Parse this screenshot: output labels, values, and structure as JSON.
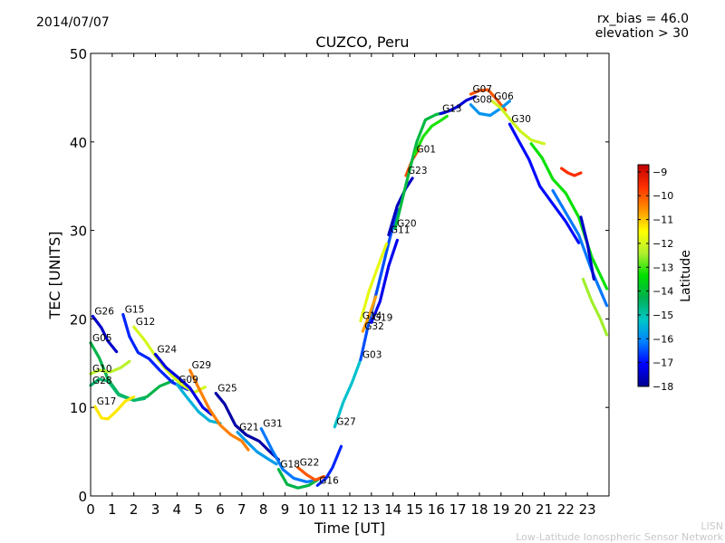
{
  "header": {
    "date": "2014/07/07",
    "title": "CUZCO, Peru",
    "note_line1": "rx_bias = 46.0",
    "note_line2": "elevation > 30"
  },
  "footer": {
    "credit_line1": "LISN",
    "credit_line2": "Low-Latitude Ionospheric Sensor Network"
  },
  "colors": {
    "scale": [
      "#00008f",
      "#0000ff",
      "#0080ff",
      "#00c8c8",
      "#00b050",
      "#00e000",
      "#b0f030",
      "#ffff00",
      "#ff9000",
      "#ff3000",
      "#c00000"
    ]
  },
  "chart_data": {
    "type": "line",
    "title": "CUZCO, Peru",
    "xlabel": "Time [UT]",
    "ylabel": "TEC [UNITS]",
    "xlim": [
      0,
      24
    ],
    "ylim": [
      0,
      50
    ],
    "xticks": [
      0,
      1,
      2,
      3,
      4,
      5,
      6,
      7,
      8,
      9,
      10,
      11,
      12,
      13,
      14,
      15,
      16,
      17,
      18,
      19,
      20,
      21,
      22,
      23
    ],
    "yticks": [
      0,
      10,
      20,
      30,
      40,
      50
    ],
    "grid": false,
    "colorbar": {
      "label": "Latitude",
      "range": [
        -18,
        -8.7
      ],
      "ticks": [
        -9,
        -10,
        -11,
        -12,
        -13,
        -14,
        -15,
        -16,
        -17,
        -18
      ]
    },
    "series": [
      {
        "name": "G26",
        "lat": -17.5,
        "x": [
          0.1,
          0.5,
          0.8,
          1.2
        ],
        "y": [
          20.3,
          19.0,
          17.5,
          16.3
        ]
      },
      {
        "name": "G05",
        "lat": -14.2,
        "x": [
          0.0,
          0.4,
          0.8,
          1.3,
          2.0,
          2.6,
          3.2,
          3.8
        ],
        "y": [
          17.3,
          15.6,
          13.2,
          11.5,
          10.8,
          11.2,
          12.4,
          13.0
        ]
      },
      {
        "name": "G10",
        "lat": -12.3,
        "x": [
          0.0,
          0.4,
          0.9,
          1.4,
          1.8
        ],
        "y": [
          13.8,
          14.2,
          14.0,
          14.5,
          15.2
        ]
      },
      {
        "name": "G28",
        "lat": -14.5,
        "x": [
          0.0,
          0.4,
          0.8,
          1.3,
          2.0,
          2.5
        ],
        "y": [
          12.5,
          13.2,
          13.0,
          11.4,
          10.8,
          11.0
        ]
      },
      {
        "name": "G17",
        "lat": -11.3,
        "x": [
          0.2,
          0.5,
          0.8,
          1.2,
          1.6,
          2.0
        ],
        "y": [
          10.1,
          8.8,
          8.7,
          9.6,
          10.7,
          11.2
        ]
      },
      {
        "name": "G15",
        "lat": -16.8,
        "x": [
          1.5,
          1.8,
          2.2,
          2.7,
          3.2,
          3.8,
          4.5
        ],
        "y": [
          20.5,
          18.0,
          16.2,
          15.5,
          14.2,
          12.8,
          12.0
        ]
      },
      {
        "name": "G12",
        "lat": -12.0,
        "x": [
          2.0,
          2.5,
          3.0,
          3.6,
          4.2,
          4.8,
          5.3
        ],
        "y": [
          19.1,
          17.6,
          15.8,
          14.0,
          12.6,
          11.7,
          12.3
        ]
      },
      {
        "name": "G24",
        "lat": -17.3,
        "x": [
          3.0,
          3.5,
          4.0,
          4.6,
          5.2,
          5.6
        ],
        "y": [
          16.0,
          14.5,
          13.5,
          12.2,
          10.0,
          9.2
        ]
      },
      {
        "name": "G09",
        "lat": -15.5,
        "x": [
          4.0,
          4.5,
          5.0,
          5.5,
          6.0
        ],
        "y": [
          12.6,
          11.0,
          9.5,
          8.5,
          8.2
        ]
      },
      {
        "name": "G29",
        "lat": -10.4,
        "x": [
          4.6,
          5.0,
          5.5,
          6.0,
          6.5,
          7.0,
          7.3
        ],
        "y": [
          14.2,
          12.2,
          9.8,
          8.0,
          6.9,
          6.2,
          5.2
        ]
      },
      {
        "name": "G25",
        "lat": -17.8,
        "x": [
          5.8,
          6.2,
          6.7,
          7.2,
          7.8,
          8.3,
          8.7
        ],
        "y": [
          11.6,
          10.4,
          8.0,
          6.9,
          6.2,
          5.0,
          4.1
        ]
      },
      {
        "name": "G21",
        "lat": -15.8,
        "x": [
          6.8,
          7.2,
          7.7,
          8.2,
          8.6
        ],
        "y": [
          7.2,
          6.2,
          5.0,
          4.2,
          3.6
        ]
      },
      {
        "name": "G31",
        "lat": -16.2,
        "x": [
          7.9,
          8.4,
          8.9,
          9.4,
          10.0,
          10.5
        ],
        "y": [
          7.6,
          5.2,
          3.0,
          2.0,
          1.6,
          1.8
        ]
      },
      {
        "name": "G18",
        "lat": -14.2,
        "x": [
          8.7,
          9.1,
          9.6,
          10.1,
          10.5
        ],
        "y": [
          3.0,
          1.3,
          0.9,
          1.2,
          1.8
        ]
      },
      {
        "name": "G22",
        "lat": -10.0,
        "x": [
          9.6,
          10.0,
          10.4,
          10.8
        ],
        "y": [
          3.2,
          2.4,
          1.8,
          2.2
        ]
      },
      {
        "name": "G16",
        "lat": -16.8,
        "x": [
          10.5,
          10.9,
          11.2,
          11.6
        ],
        "y": [
          1.2,
          2.0,
          3.2,
          5.6
        ]
      },
      {
        "name": "G27",
        "lat": -15.3,
        "x": [
          11.3,
          11.7,
          12.1,
          12.5
        ],
        "y": [
          7.8,
          10.6,
          12.8,
          15.4
        ]
      },
      {
        "name": "G03",
        "lat": -16.5,
        "x": [
          12.5,
          12.9,
          13.3,
          13.8,
          14.2
        ],
        "y": [
          15.4,
          19.8,
          23.6,
          28.6,
          32.4
        ]
      },
      {
        "name": "G14",
        "lat": -11.8,
        "x": [
          12.5,
          12.9,
          13.3,
          13.7
        ],
        "y": [
          19.8,
          23.2,
          25.9,
          28.5
        ]
      },
      {
        "name": "G32",
        "lat": -10.7,
        "x": [
          12.6,
          12.9,
          13.2
        ],
        "y": [
          18.6,
          20.4,
          22.5
        ]
      },
      {
        "name": "G19",
        "lat": -17.2,
        "x": [
          13.0,
          13.4,
          13.8,
          14.2
        ],
        "y": [
          19.6,
          22.0,
          26.0,
          28.9
        ]
      },
      {
        "name": "G11",
        "lat": -17.6,
        "x": [
          13.8,
          14.2,
          14.6,
          14.9
        ],
        "y": [
          29.5,
          32.8,
          34.8,
          35.9
        ]
      },
      {
        "name": "G23",
        "lat": -9.9,
        "x": [
          14.6,
          14.9,
          15.2
        ],
        "y": [
          36.2,
          38.0,
          39.2
        ]
      },
      {
        "name": "G20",
        "lat": -14.1,
        "x": [
          14.1,
          14.6,
          15.1,
          15.5,
          16.0,
          16.4
        ],
        "y": [
          30.2,
          35.2,
          40.0,
          42.5,
          43.1,
          43.3
        ]
      },
      {
        "name": "G01",
        "lat": -13.2,
        "x": [
          15.0,
          15.4,
          15.8,
          16.2,
          16.5
        ],
        "y": [
          38.6,
          40.6,
          41.8,
          42.4,
          42.9
        ]
      },
      {
        "name": "G13",
        "lat": -17.4,
        "x": [
          16.2,
          16.6,
          17.0,
          17.4,
          17.8
        ],
        "y": [
          43.2,
          43.5,
          44.0,
          44.7,
          45.1
        ]
      },
      {
        "name": "G07",
        "lat": -10.0,
        "x": [
          17.6,
          18.0,
          18.4,
          18.8,
          19.2
        ],
        "y": [
          45.4,
          45.8,
          45.9,
          44.8,
          43.6
        ]
      },
      {
        "name": "G08",
        "lat": -15.9,
        "x": [
          17.6,
          18.0,
          18.5,
          19.0,
          19.4
        ],
        "y": [
          44.2,
          43.2,
          43.0,
          43.8,
          44.6
        ]
      },
      {
        "name": "G06",
        "lat": -12.1,
        "x": [
          18.6,
          19.0,
          19.4,
          19.9,
          20.4,
          21.0
        ],
        "y": [
          44.6,
          43.8,
          42.6,
          41.2,
          40.2,
          39.8
        ]
      },
      {
        "name": "G30",
        "lat": -17.0,
        "x": [
          19.4,
          19.8,
          20.3,
          20.8,
          21.4,
          22.0,
          22.6
        ],
        "y": [
          42.0,
          40.2,
          38.0,
          35.0,
          33.0,
          31.0,
          28.6
        ]
      },
      {
        "name": "",
        "lat": -13.3,
        "x": [
          20.4,
          20.9,
          21.4,
          22.0,
          22.6,
          23.2,
          23.9
        ],
        "y": [
          39.8,
          38.2,
          35.8,
          34.2,
          31.5,
          27.0,
          23.4
        ]
      },
      {
        "name": "",
        "lat": -16.2,
        "x": [
          21.4,
          22.0,
          22.6,
          23.2,
          23.9
        ],
        "y": [
          34.5,
          32.0,
          29.5,
          25.5,
          21.5
        ]
      },
      {
        "name": "",
        "lat": -9.6,
        "x": [
          21.8,
          22.1,
          22.4,
          22.7
        ],
        "y": [
          37.0,
          36.5,
          36.2,
          36.5
        ]
      },
      {
        "name": "",
        "lat": -12.5,
        "x": [
          22.8,
          23.2,
          23.6,
          23.9
        ],
        "y": [
          24.5,
          22.0,
          20.0,
          18.2
        ]
      },
      {
        "name": "",
        "lat": -17.5,
        "x": [
          22.7,
          23.0,
          23.3
        ],
        "y": [
          31.5,
          28.5,
          24.5
        ]
      }
    ]
  }
}
